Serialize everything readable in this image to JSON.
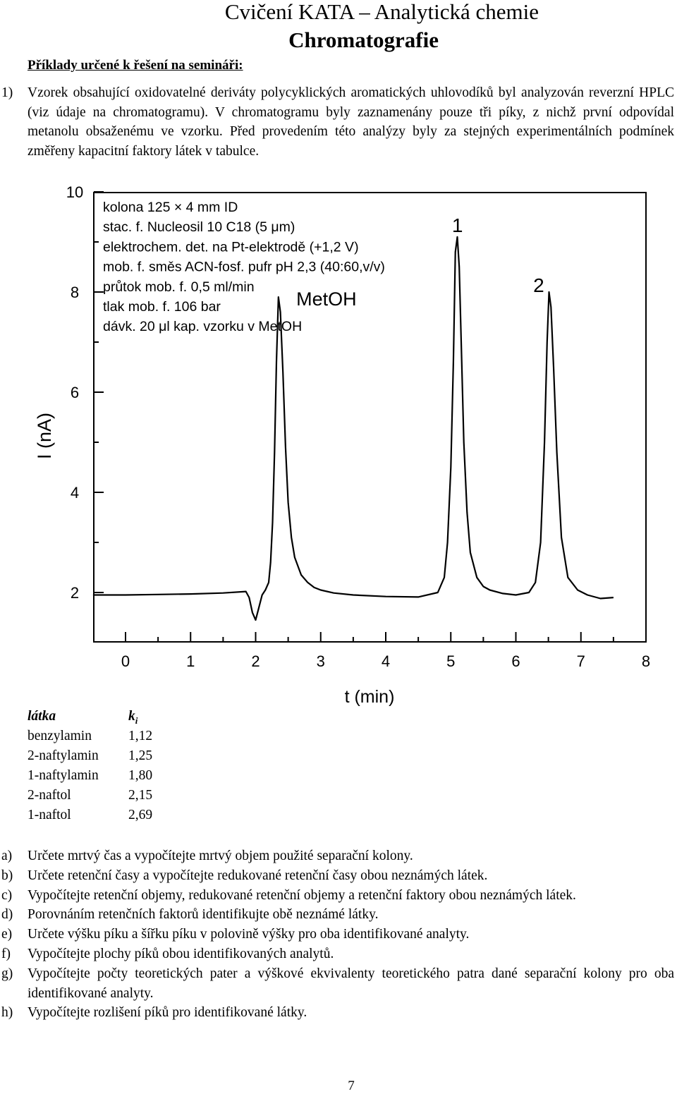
{
  "header": {
    "title": "Cvičení KATA – Analytická chemie",
    "subtitle": "Chromatografie"
  },
  "section_heading": "Příklady určené k řešení na semináři:",
  "problem": {
    "number": "1)",
    "text": "Vzorek obsahující oxidovatelné deriváty polycyklických aromatických uhlovodíků byl analyzován reverzní HPLC (viz údaje na chromatogramu). V chromatogramu byly zaznamenány pouze tři píky, z nichž první odpovídal metanolu obsaženému ve vzorku. Před provedením této analýzy byly za stejných experimentálních podmínek změřeny kapacitní faktory látek v tabulce."
  },
  "chart_data": {
    "type": "line",
    "xlabel": "t (min)",
    "ylabel": "I (nA)",
    "xlim": [
      -0.5,
      8
    ],
    "ylim": [
      1.0,
      10.0
    ],
    "x_ticks": [
      "0",
      "1",
      "2",
      "3",
      "4",
      "5",
      "6",
      "7",
      "8"
    ],
    "y_ticks": [
      "2",
      "4",
      "6",
      "8",
      "10"
    ],
    "grid": false,
    "legend": "none",
    "conditions": [
      "kolona 125 × 4 mm ID",
      "stac. f. Nucleosil 10 C18 (5 μm)",
      "elektrochem. det. na Pt-elektrodě (+1,2 V)",
      "mob. f. směs ACN-fosf. pufr pH 2,3 (40:60,v/v)",
      "průtok mob. f. 0,5 ml/min",
      "tlak mob. f. 106 bar",
      "dávk. 20 μl kap. vzorku v MetOH"
    ],
    "annotations": [
      {
        "text": "MetOH",
        "x": 2.3,
        "y": 7.9
      },
      {
        "text": "1",
        "x": 5.05,
        "y": 9.2
      },
      {
        "text": "2",
        "x": 6.3,
        "y": 8.0
      }
    ],
    "series": [
      {
        "x": [
          -0.5,
          0.0,
          0.5,
          1.0,
          1.5,
          1.85,
          1.9,
          1.95,
          2.0,
          2.05,
          2.1,
          2.15,
          2.2,
          2.23,
          2.26,
          2.29,
          2.32,
          2.35,
          2.38,
          2.42,
          2.46,
          2.5,
          2.55,
          2.6,
          2.7,
          2.8,
          2.9,
          3.0,
          3.2,
          3.5,
          4.0,
          4.5,
          4.8,
          4.9,
          4.95,
          5.0,
          5.04,
          5.07,
          5.1,
          5.13,
          5.16,
          5.2,
          5.25,
          5.3,
          5.4,
          5.5,
          5.6,
          5.8,
          6.0,
          6.2,
          6.3,
          6.38,
          6.44,
          6.48,
          6.51,
          6.54,
          6.58,
          6.63,
          6.7,
          6.8,
          6.95,
          7.1,
          7.3,
          7.5
        ],
        "y": [
          1.95,
          1.95,
          1.96,
          1.97,
          1.99,
          2.02,
          1.9,
          1.6,
          1.45,
          1.7,
          1.95,
          2.05,
          2.2,
          2.6,
          3.4,
          4.8,
          6.6,
          7.9,
          7.6,
          6.4,
          4.9,
          3.8,
          3.1,
          2.7,
          2.35,
          2.2,
          2.1,
          2.05,
          1.99,
          1.95,
          1.92,
          1.91,
          2.0,
          2.3,
          3.0,
          4.5,
          6.6,
          8.8,
          9.1,
          8.5,
          7.0,
          5.0,
          3.6,
          2.8,
          2.3,
          2.12,
          2.05,
          1.98,
          1.95,
          2.0,
          2.2,
          3.0,
          5.0,
          7.0,
          8.0,
          7.7,
          6.5,
          4.8,
          3.1,
          2.3,
          2.05,
          1.95,
          1.88,
          1.9
        ]
      }
    ]
  },
  "table": {
    "headers": [
      "látka",
      "k",
      "i"
    ],
    "rows": [
      [
        "benzylamin",
        "1,12"
      ],
      [
        "2-naftylamin",
        "1,25"
      ],
      [
        "1-naftylamin",
        "1,80"
      ],
      [
        "2-naftol",
        "2,15"
      ],
      [
        "1-naftol",
        "2,69"
      ]
    ]
  },
  "tasks": [
    {
      "letter": "a)",
      "text": "Určete mrtvý čas a vypočítejte mrtvý objem použité separační kolony."
    },
    {
      "letter": "b)",
      "text": "Určete retenční časy a vypočítejte redukované retenční časy obou neznámých látek."
    },
    {
      "letter": "c)",
      "text": "Vypočítejte retenční objemy, redukované retenční objemy a retenční faktory obou neznámých látek."
    },
    {
      "letter": "d)",
      "text": "Porovnáním retenčních faktorů identifikujte obě neznámé látky."
    },
    {
      "letter": "e)",
      "text": "Určete výšku píku a šířku píku v polovině výšky pro oba identifikované analyty."
    },
    {
      "letter": "f)",
      "text": "Vypočítejte plochy píků obou identifikovaných analytů."
    },
    {
      "letter": "g)",
      "text": "Vypočítejte počty teoretických pater a výškové ekvivalenty teoretického patra dané separační kolony pro oba identifikované analyty."
    },
    {
      "letter": "h)",
      "text": "Vypočítejte rozlišení píků pro identifikované látky."
    }
  ],
  "page_number": "7"
}
